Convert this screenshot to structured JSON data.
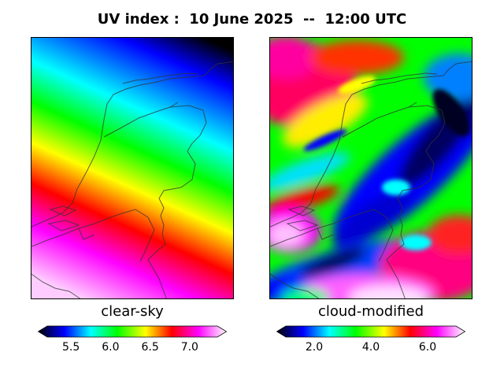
{
  "title": "UV index :  10 June 2025  --  12:00 UTC",
  "panels": {
    "left": {
      "label": "clear-sky",
      "colorbar": {
        "min": 5.2,
        "max": 7.35,
        "ticks": [
          "5.5",
          "6.0",
          "6.5",
          "7.0"
        ]
      }
    },
    "right": {
      "label": "cloud-modified",
      "colorbar": {
        "min": 1.0,
        "max": 7.0,
        "ticks": [
          "2.0",
          "4.0",
          "6.0"
        ]
      }
    }
  },
  "colormap": [
    "#000000",
    "#0000ff",
    "#00ffff",
    "#00ff00",
    "#ffff00",
    "#ff0000",
    "#ff00ff",
    "#ffffff"
  ]
}
